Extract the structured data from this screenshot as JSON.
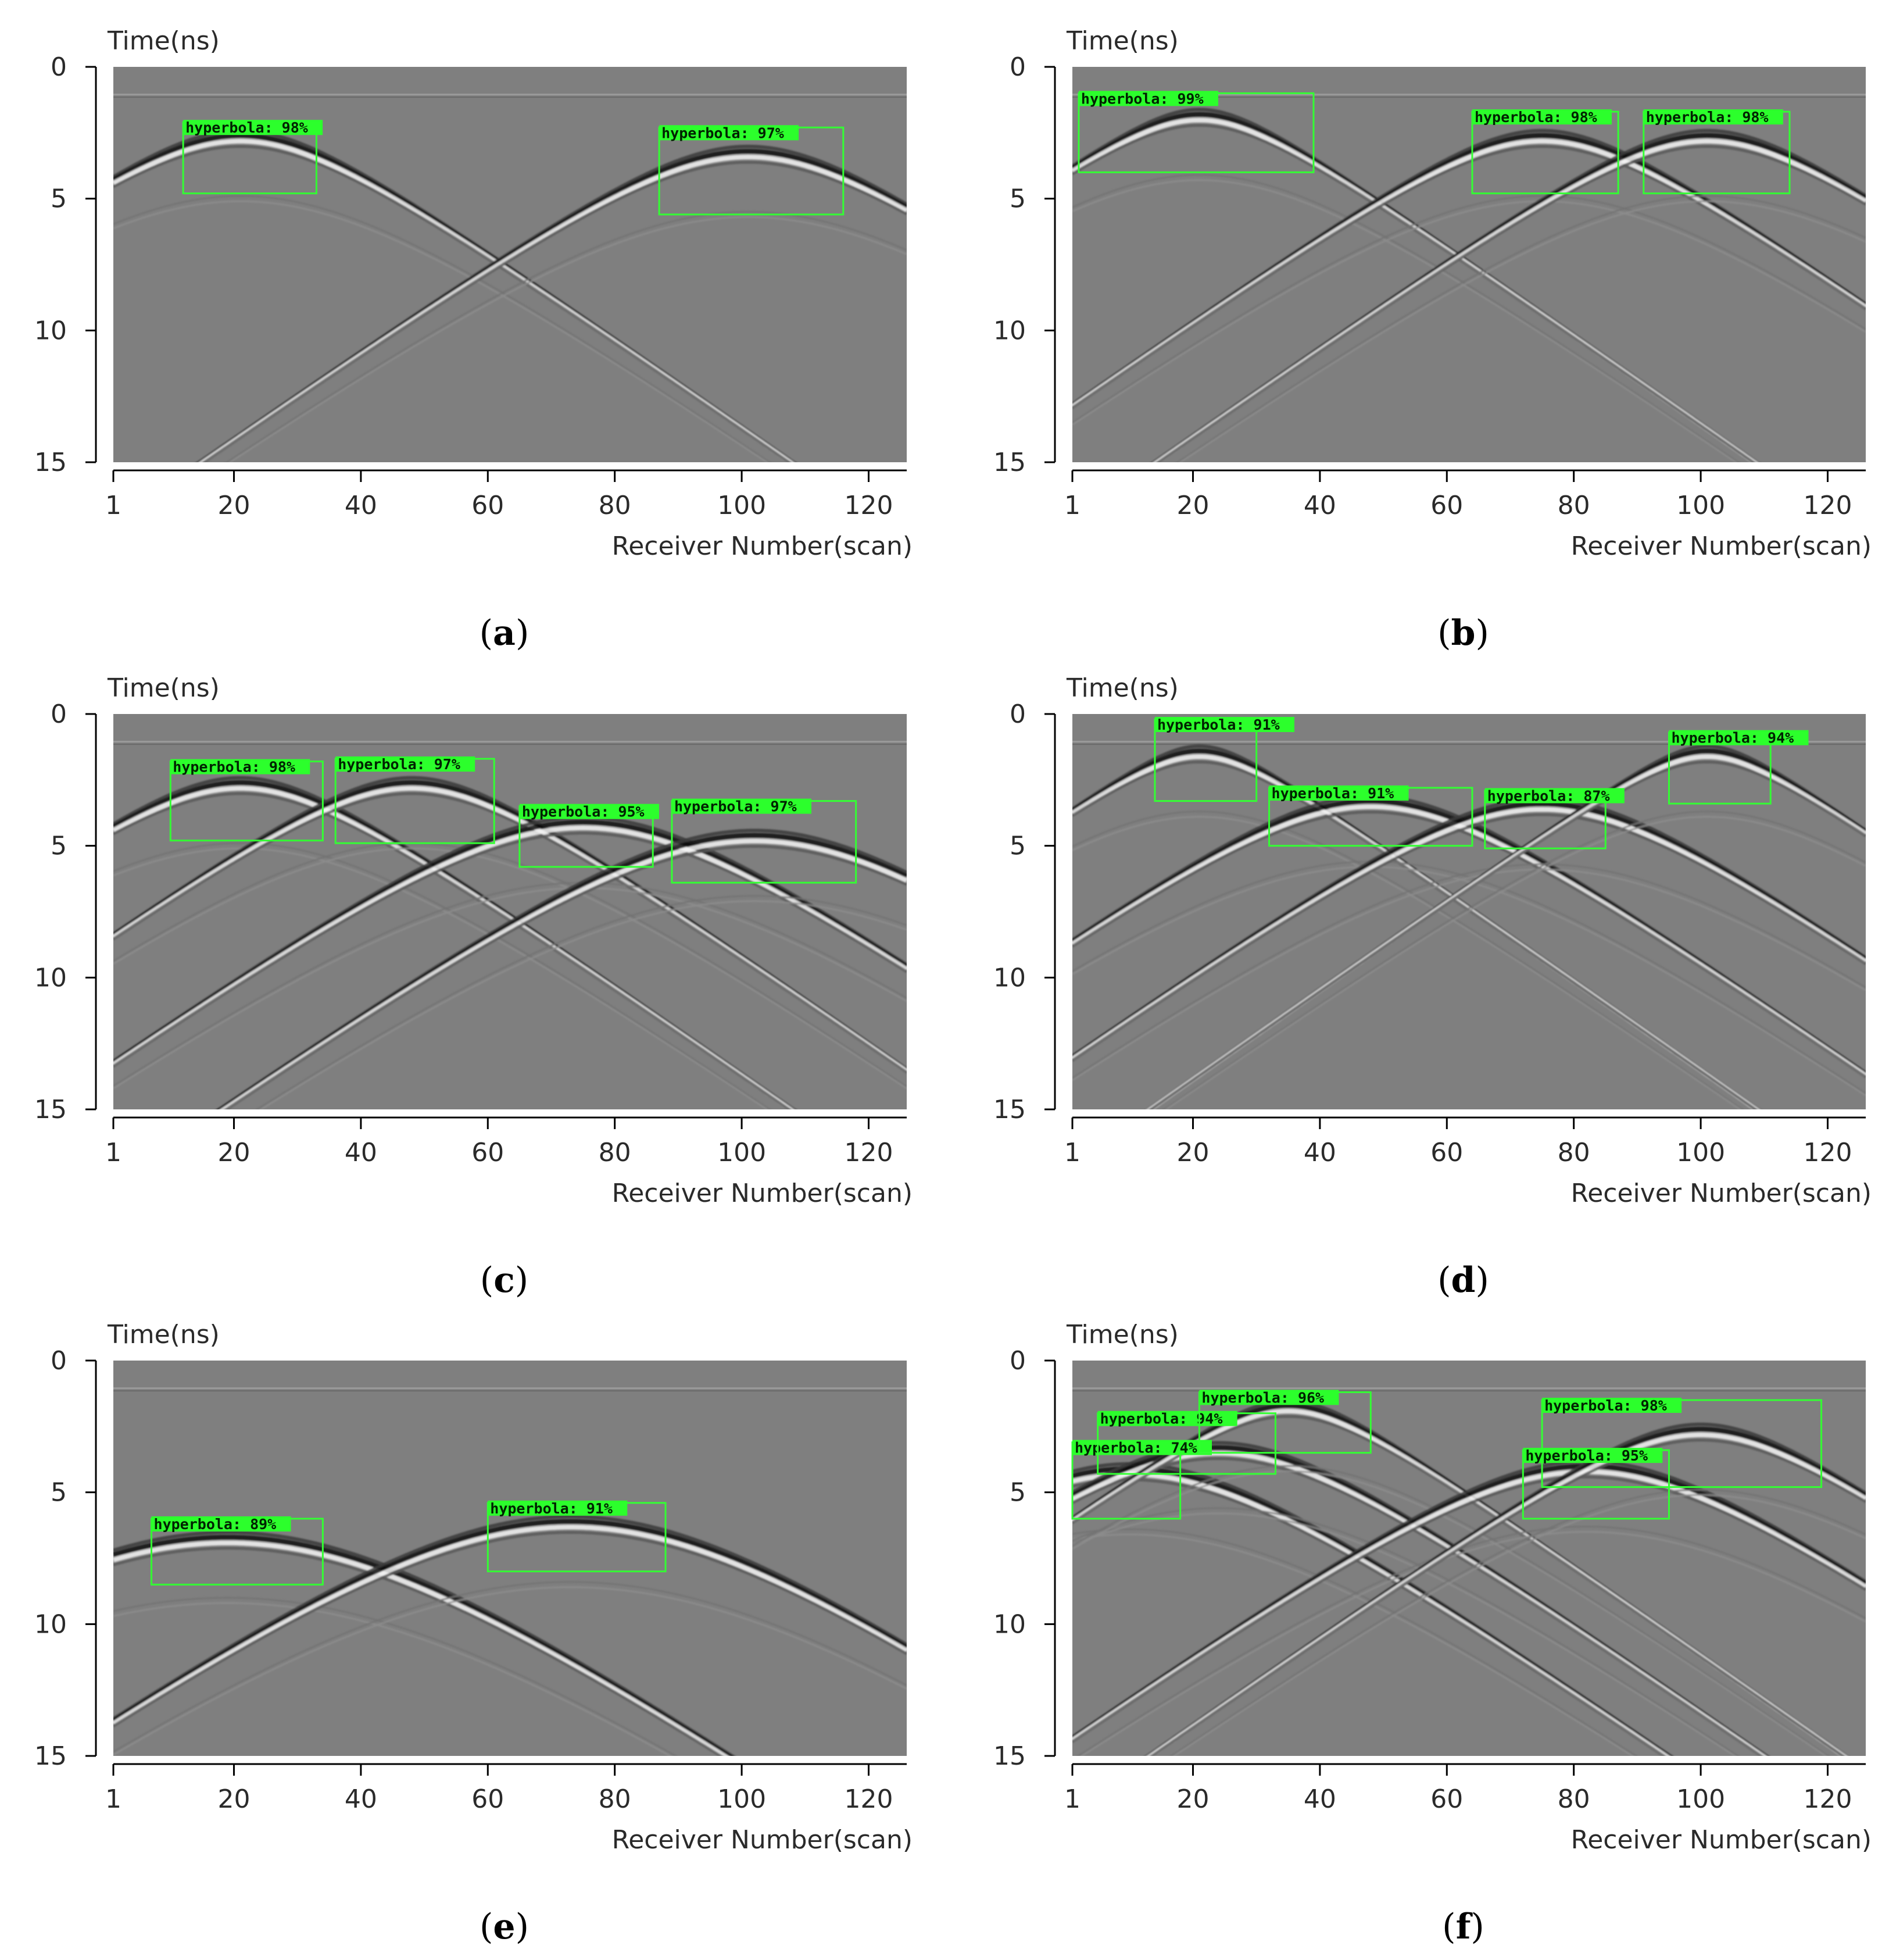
{
  "figure": {
    "description_axis_x": "Receiver Number(scan)",
    "description_axis_y": "Time(ns)"
  },
  "colors": {
    "background_gray": "#7f7f7f",
    "box_green": "#33ff33",
    "label_green": "#2cff2c",
    "axis_black": "#000000"
  },
  "chart_data": [
    {
      "panel": "a",
      "type": "scatter",
      "caption": [
        "(",
        "a",
        ")"
      ],
      "xlabel": "Receiver Number(scan)",
      "ylabel": "Time(ns)",
      "xlim": [
        1,
        126
      ],
      "ylim": [
        0,
        15
      ],
      "x_ticks": [
        1,
        20,
        40,
        60,
        80,
        100,
        120
      ],
      "y_ticks": [
        0,
        5,
        10,
        15
      ],
      "hyperbolas": [
        {
          "apex_x": 21,
          "apex_t": 2.6
        },
        {
          "apex_x": 101,
          "apex_t": 3.2
        }
      ],
      "detections": [
        {
          "label": "hyperbola: 98%",
          "x0": 12,
          "x1": 33,
          "t0": 2.1,
          "t1": 4.8
        },
        {
          "label": "hyperbola: 97%",
          "x0": 87,
          "x1": 116,
          "t0": 2.3,
          "t1": 5.6
        }
      ]
    },
    {
      "panel": "b",
      "type": "scatter",
      "caption": [
        "(",
        "b",
        ")"
      ],
      "xlabel": "Receiver Number(scan)",
      "ylabel": "Time(ns)",
      "xlim": [
        1,
        126
      ],
      "ylim": [
        0,
        15
      ],
      "x_ticks": [
        1,
        20,
        40,
        60,
        80,
        100,
        120
      ],
      "y_ticks": [
        0,
        5,
        10,
        15
      ],
      "hyperbolas": [
        {
          "apex_x": 21,
          "apex_t": 1.8
        },
        {
          "apex_x": 75,
          "apex_t": 2.6
        },
        {
          "apex_x": 101,
          "apex_t": 2.6
        }
      ],
      "detections": [
        {
          "label": "hyperbola: 99%",
          "x0": 2,
          "x1": 39,
          "t0": 1.0,
          "t1": 4.0
        },
        {
          "label": "hyperbola: 98%",
          "x0": 64,
          "x1": 87,
          "t0": 1.7,
          "t1": 4.8
        },
        {
          "label": "hyperbola: 98%",
          "x0": 91,
          "x1": 114,
          "t0": 1.7,
          "t1": 4.8
        }
      ]
    },
    {
      "panel": "c",
      "type": "scatter",
      "caption": [
        "(",
        "c",
        ")"
      ],
      "xlabel": "Receiver Number(scan)",
      "ylabel": "Time(ns)",
      "xlim": [
        1,
        126
      ],
      "ylim": [
        0,
        15
      ],
      "x_ticks": [
        1,
        20,
        40,
        60,
        80,
        100,
        120
      ],
      "y_ticks": [
        0,
        5,
        10,
        15
      ],
      "hyperbolas": [
        {
          "apex_x": 21,
          "apex_t": 2.6
        },
        {
          "apex_x": 48,
          "apex_t": 2.6
        },
        {
          "apex_x": 75,
          "apex_t": 4.1
        },
        {
          "apex_x": 102,
          "apex_t": 4.6
        }
      ],
      "detections": [
        {
          "label": "hyperbola: 98%",
          "x0": 10,
          "x1": 34,
          "t0": 1.8,
          "t1": 4.8
        },
        {
          "label": "hyperbola: 97%",
          "x0": 36,
          "x1": 61,
          "t0": 1.7,
          "t1": 4.9
        },
        {
          "label": "hyperbola: 95%",
          "x0": 65,
          "x1": 86,
          "t0": 3.5,
          "t1": 5.8
        },
        {
          "label": "hyperbola: 97%",
          "x0": 89,
          "x1": 118,
          "t0": 3.3,
          "t1": 6.4
        }
      ]
    },
    {
      "panel": "d",
      "type": "scatter",
      "caption": [
        "(",
        "d",
        ")"
      ],
      "xlabel": "Receiver Number(scan)",
      "ylabel": "Time(ns)",
      "xlim": [
        1,
        126
      ],
      "ylim": [
        0,
        15
      ],
      "x_ticks": [
        1,
        20,
        40,
        60,
        80,
        100,
        120
      ],
      "y_ticks": [
        0,
        5,
        10,
        15
      ],
      "hyperbolas": [
        {
          "apex_x": 21,
          "apex_t": 1.4
        },
        {
          "apex_x": 48,
          "apex_t": 3.3
        },
        {
          "apex_x": 75,
          "apex_t": 3.4
        },
        {
          "apex_x": 101,
          "apex_t": 1.4
        }
      ],
      "detections": [
        {
          "label": "hyperbola: 91%",
          "x0": 14,
          "x1": 30,
          "t0": 0.2,
          "t1": 3.3
        },
        {
          "label": "hyperbola: 91%",
          "x0": 32,
          "x1": 64,
          "t0": 2.8,
          "t1": 5.0
        },
        {
          "label": "hyperbola: 87%",
          "x0": 66,
          "x1": 85,
          "t0": 2.9,
          "t1": 5.1
        },
        {
          "label": "hyperbola: 94%",
          "x0": 95,
          "x1": 111,
          "t0": 0.7,
          "t1": 3.4
        }
      ]
    },
    {
      "panel": "e",
      "type": "scatter",
      "caption": [
        "(",
        "e",
        ")"
      ],
      "xlabel": "Receiver Number(scan)",
      "ylabel": "Time(ns)",
      "xlim": [
        1,
        126
      ],
      "ylim": [
        0,
        15
      ],
      "x_ticks": [
        1,
        20,
        40,
        60,
        80,
        100,
        120
      ],
      "y_ticks": [
        0,
        5,
        10,
        15
      ],
      "hyperbolas": [
        {
          "apex_x": 19,
          "apex_t": 6.7
        },
        {
          "apex_x": 73,
          "apex_t": 6.1
        }
      ],
      "detections": [
        {
          "label": "hyperbola: 89%",
          "x0": 7,
          "x1": 34,
          "t0": 6.0,
          "t1": 8.5
        },
        {
          "label": "hyperbola: 91%",
          "x0": 60,
          "x1": 88,
          "t0": 5.4,
          "t1": 8.0
        }
      ]
    },
    {
      "panel": "f",
      "type": "scatter",
      "caption": [
        "(",
        "f",
        ")"
      ],
      "xlabel": "Receiver Number(scan)",
      "ylabel": "Time(ns)",
      "xlim": [
        1,
        126
      ],
      "ylim": [
        0,
        15
      ],
      "x_ticks": [
        1,
        20,
        40,
        60,
        80,
        100,
        120
      ],
      "y_ticks": [
        0,
        5,
        10,
        15
      ],
      "hyperbolas": [
        {
          "apex_x": 10,
          "apex_t": 4.1
        },
        {
          "apex_x": 24,
          "apex_t": 3.3
        },
        {
          "apex_x": 35,
          "apex_t": 1.7
        },
        {
          "apex_x": 82,
          "apex_t": 4.0
        },
        {
          "apex_x": 100,
          "apex_t": 2.6
        }
      ],
      "detections": [
        {
          "label": "hyperbola: 74%",
          "x0": 1,
          "x1": 18,
          "t0": 3.1,
          "t1": 6.0
        },
        {
          "label": "hyperbola: 94%",
          "x0": 5,
          "x1": 33,
          "t0": 2.0,
          "t1": 4.3
        },
        {
          "label": "hyperbola: 96%",
          "x0": 21,
          "x1": 48,
          "t0": 1.2,
          "t1": 3.5
        },
        {
          "label": "hyperbola: 98%",
          "x0": 75,
          "x1": 119,
          "t0": 1.5,
          "t1": 4.8
        },
        {
          "label": "hyperbola: 95%",
          "x0": 72,
          "x1": 95,
          "t0": 3.4,
          "t1": 6.0
        }
      ]
    }
  ]
}
